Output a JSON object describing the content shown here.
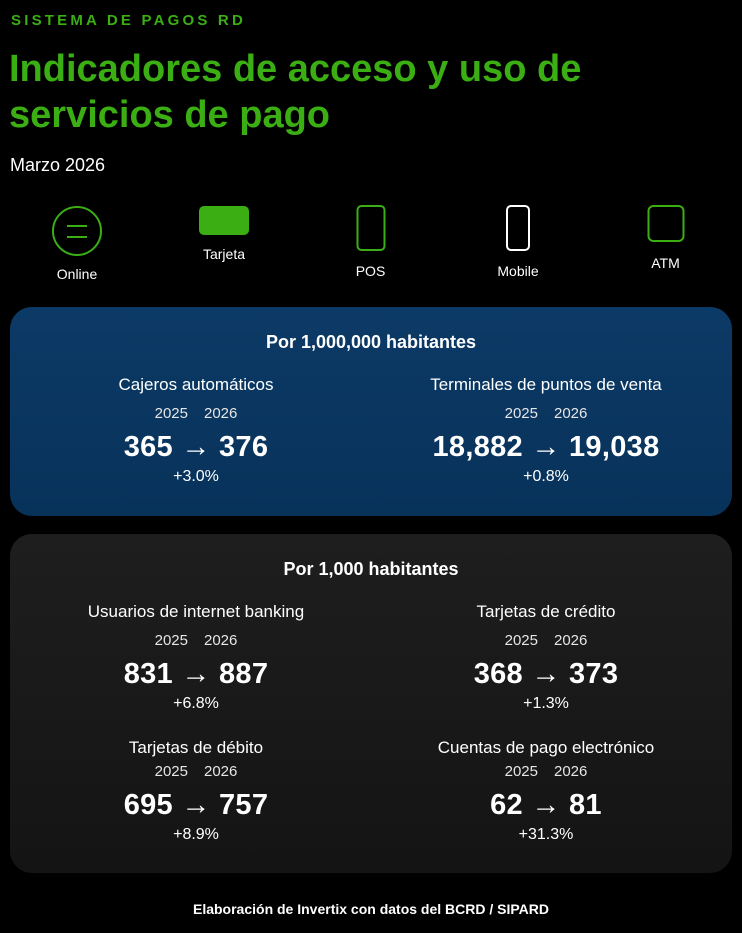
{
  "header": {
    "kicker": "SISTEMA DE PAGOS RD",
    "title": "Indicadores de acceso y uso de servicios de pago",
    "subtitle": "Marzo 2026"
  },
  "channels": [
    {
      "label": "Online",
      "icon": "globe-icon"
    },
    {
      "label": "Tarjeta",
      "icon": "card-icon"
    },
    {
      "label": "POS",
      "icon": "pos-terminal-icon"
    },
    {
      "label": "Mobile",
      "icon": "mobile-phone-icon"
    },
    {
      "label": "ATM",
      "icon": "atm-icon"
    }
  ],
  "per_million": {
    "heading": "Por 1,000,000 habitantes",
    "metrics": [
      {
        "name": "Cajeros automáticos",
        "year_a": "2025",
        "year_b": "2026",
        "values": "365 → 376",
        "change": "+3.0%"
      },
      {
        "name": "Terminales de puntos de venta",
        "year_a": "2025",
        "year_b": "2026",
        "values": "18,882 → 19,038",
        "change": "+0.8%"
      }
    ]
  },
  "per_thousand": {
    "heading": "Por 1,000 habitantes",
    "metrics": [
      {
        "name": "Usuarios de internet banking",
        "year_a": "2025",
        "year_b": "2026",
        "values": "831 → 887",
        "change": "+6.8%"
      },
      {
        "name": "Tarjetas de crédito",
        "year_a": "2025",
        "year_b": "2026",
        "values": "368 → 373",
        "change": "+1.3%"
      },
      {
        "name": "Tarjetas de débito",
        "year_a": "2025",
        "year_b": "2026",
        "values": "695 → 757",
        "change": "+8.9%"
      },
      {
        "name": "Cuentas de pago electrónico",
        "year_a": "2025",
        "year_b": "2026",
        "values": "62 → 81",
        "change": "+31.3%"
      }
    ]
  },
  "footer": "Elaboración de Invertix con datos del BCRD / SIPARD",
  "colors": {
    "accent": "#3aae13",
    "blue_panel": "#0b3864",
    "dark_panel": "#1a1a1a",
    "background": "#000000"
  }
}
